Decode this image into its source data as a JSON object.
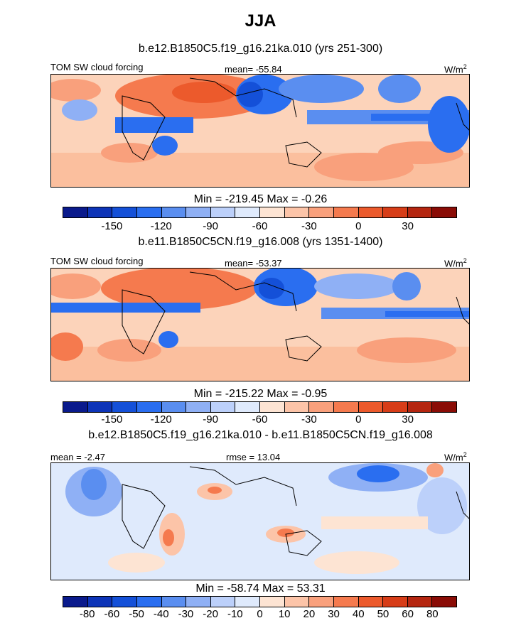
{
  "chart_data": {
    "type": "heatmap",
    "title": "JJA",
    "panels": [
      {
        "title": "b.e12.B1850C5.f19_g16.21ka.010 (yrs 251-300)",
        "left_label": "TOM SW cloud forcing",
        "center_label": "mean= -55.84",
        "units_base": "W/m",
        "units_exp": "2",
        "minmax": "Min = -219.45 Max =  -0.26"
      },
      {
        "title": "b.e11.B1850C5CN.f19_g16.008 (yrs 1351-1400)",
        "left_label": "TOM SW cloud forcing",
        "center_label": "mean= -53.37",
        "units_base": "W/m",
        "units_exp": "2",
        "minmax": "Min = -215.22 Max =  -0.95"
      },
      {
        "title": "b.e12.B1850C5.f19_g16.21ka.010 - b.e11.B1850C5CN.f19_g16.008",
        "left_label": "mean =  -2.47",
        "center_label": "rmse =  13.04",
        "units_base": "W/m",
        "units_exp": "2",
        "minmax": "Min = -58.74 Max =  53.31"
      }
    ],
    "colorbar_colors": [
      "#0a1a8c",
      "#0d34b8",
      "#1450d8",
      "#2a6ef0",
      "#5a8ef0",
      "#8fb0f5",
      "#bcd0fa",
      "#dfeafc",
      "#fde4d3",
      "#fcc4a8",
      "#f9a07c",
      "#f57a4e",
      "#ec5a2c",
      "#d73d18",
      "#b52610",
      "#8a0c06"
    ],
    "colorbar_abs": {
      "levels": [
        -180,
        -165,
        -150,
        -135,
        -120,
        -105,
        -90,
        -75,
        -60,
        -45,
        -30,
        -15,
        0,
        15,
        30,
        45,
        60
      ],
      "tick_labels": [
        "-150",
        "-120",
        "-90",
        "-60",
        "-30",
        "0",
        "30"
      ],
      "tick_values": [
        -150,
        -120,
        -90,
        -60,
        -30,
        0,
        30
      ]
    },
    "colorbar_diff": {
      "tick_labels": [
        "-80",
        "-60",
        "-50",
        "-40",
        "-30",
        "-20",
        "-10",
        "0",
        "10",
        "20",
        "30",
        "40",
        "50",
        "60",
        "80"
      ],
      "tick_values": [
        -80,
        -60,
        -50,
        -40,
        -30,
        -20,
        -10,
        0,
        10,
        20,
        30,
        40,
        50,
        60,
        80
      ]
    }
  }
}
